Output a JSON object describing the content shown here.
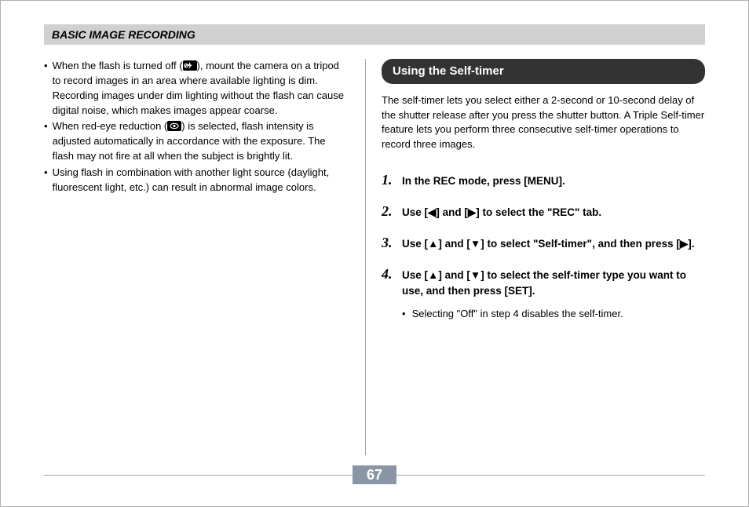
{
  "header": "BASIC IMAGE RECORDING",
  "left_bullets": [
    {
      "pre": "When the flash is turned off (",
      "icon": "flash-off",
      "post": "), mount the camera on a tripod to record images in an area where available lighting is dim. Recording images under dim lighting without the flash can cause digital noise, which makes images appear coarse."
    },
    {
      "pre": "When red-eye reduction (",
      "icon": "redeye",
      "post": ") is selected, flash intensity is adjusted automatically in accordance with the exposure. The flash may not fire at all when the subject is brightly lit."
    },
    {
      "pre": "Using flash in combination with another light source (daylight, fluorescent light, etc.) can result in abnormal image colors.",
      "icon": null,
      "post": ""
    }
  ],
  "right": {
    "pill": "Using the Self-timer",
    "intro": "The self-timer lets you select either a 2-second or 10-second delay of the shutter release after you press the shutter button. A Triple Self-timer feature lets you perform three consecutive self-timer operations to record three images.",
    "steps": [
      "In the REC mode, press [MENU].",
      "Use [◀] and [▶] to select the \"REC\" tab.",
      "Use [▲] and [▼] to select \"Self-timer\", and then press [▶].",
      "Use [▲] and [▼] to select the self-timer type you want to use, and then press [SET]."
    ],
    "sub_bullet": "Selecting \"Off\" in step 4 disables the self-timer."
  },
  "page_number": "67"
}
